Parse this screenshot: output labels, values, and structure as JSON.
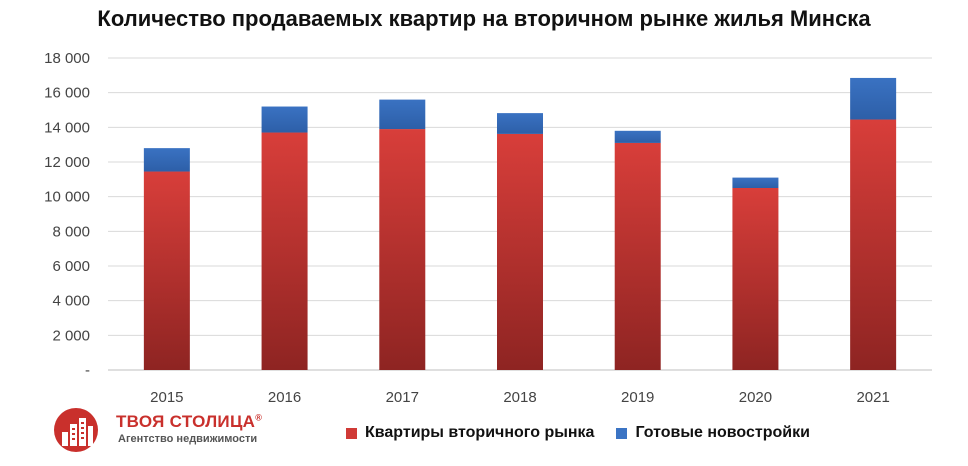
{
  "chart_data": {
    "type": "bar",
    "stacked": true,
    "title": "Количество продаваемых квартир на вторичном рынке жилья Минска",
    "categories": [
      "2015",
      "2016",
      "2017",
      "2018",
      "2019",
      "2020",
      "2021"
    ],
    "series": [
      {
        "name": "Квартиры вторичного рынка",
        "color": "#d03a36",
        "values": [
          11450,
          13700,
          13900,
          13620,
          13100,
          10500,
          14450
        ]
      },
      {
        "name": "Готовые новостройки",
        "color": "#3b74c4",
        "values": [
          1350,
          1500,
          1700,
          1200,
          700,
          600,
          2400
        ]
      }
    ],
    "ylim": [
      0,
      18000
    ],
    "yticks": [
      "-",
      "2 000",
      "4 000",
      "6 000",
      "8 000",
      "10 000",
      "12 000",
      "14 000",
      "16 000",
      "18 000"
    ],
    "grid": true,
    "legend_position": "bottom"
  },
  "logo": {
    "name": "ТВОЯ СТОЛИЦА",
    "trademark": "®",
    "subtitle": "Агентство недвижимости",
    "icon": "building-logo-icon"
  }
}
